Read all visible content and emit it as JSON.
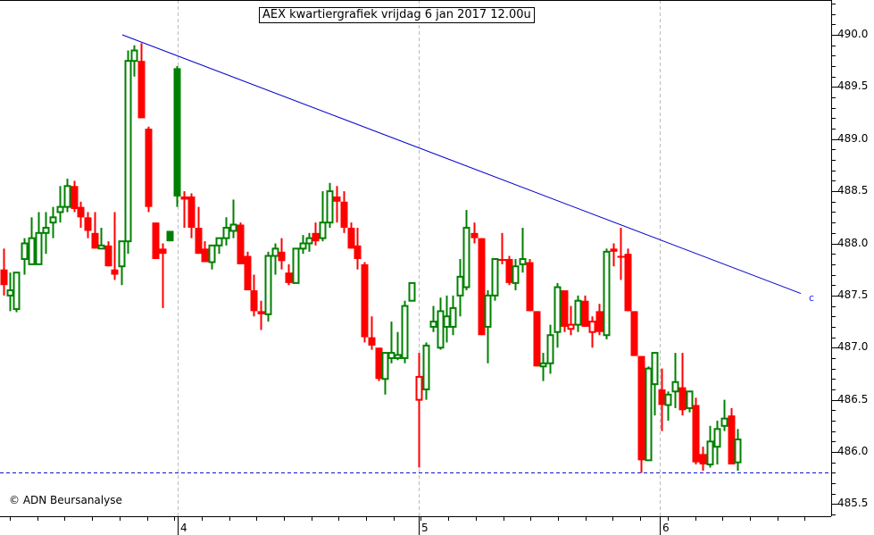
{
  "title": "AEX kwartiergrafiek vrijdag 6 jan 2017 12.00u",
  "copyright": "© ADN Beursanalyse",
  "trendline_label": "c",
  "colors": {
    "up": "#008000",
    "down": "#ff0000",
    "trendline": "#0000cc",
    "support": "#0000cc",
    "grid": "#bbbbbb",
    "axis": "#000000"
  },
  "chart_data": {
    "type": "candlestick",
    "title": "AEX kwartiergrafiek vrijdag 6 jan 2017 12.00u",
    "xlabel": "",
    "ylabel": "",
    "ylim": [
      485.38,
      490.33
    ],
    "y_ticks": [
      "490.0",
      "489.5",
      "489.0",
      "488.5",
      "488.0",
      "487.5",
      "487.0",
      "486.5",
      "486.0",
      "485.5"
    ],
    "x_ticks": [
      {
        "label": "4",
        "x": 199
      },
      {
        "label": "5",
        "x": 469
      },
      {
        "label": "6",
        "x": 739
      }
    ],
    "grid": "vertical dashed at day boundaries",
    "annotations": [
      {
        "type": "trendline",
        "label": "c",
        "from": {
          "x": 137,
          "price": 490.0
        },
        "to": {
          "x": 897,
          "price": 487.52
        }
      },
      {
        "type": "support_line",
        "style": "dashed",
        "price": 485.8
      }
    ],
    "candles": [
      {
        "x": 4,
        "o": 487.75,
        "h": 487.95,
        "l": 487.5,
        "c": 487.6,
        "dir": "down"
      },
      {
        "x": 11,
        "o": 487.5,
        "h": 487.72,
        "l": 487.35,
        "c": 487.55,
        "dir": "up"
      },
      {
        "x": 18,
        "o": 487.37,
        "h": 487.72,
        "l": 487.34,
        "c": 487.72,
        "dir": "up"
      },
      {
        "x": 27,
        "o": 487.85,
        "h": 488.05,
        "l": 487.7,
        "c": 488.0,
        "dir": "up"
      },
      {
        "x": 35,
        "o": 488.05,
        "h": 488.25,
        "l": 487.85,
        "c": 487.8,
        "dir": "up"
      },
      {
        "x": 43,
        "o": 487.8,
        "h": 488.3,
        "l": 487.8,
        "c": 488.1,
        "dir": "up"
      },
      {
        "x": 51,
        "o": 488.1,
        "h": 488.3,
        "l": 487.9,
        "c": 488.15,
        "dir": "up"
      },
      {
        "x": 59,
        "o": 488.2,
        "h": 488.35,
        "l": 488.05,
        "c": 488.25,
        "dir": "up"
      },
      {
        "x": 67,
        "o": 488.3,
        "h": 488.55,
        "l": 488.2,
        "c": 488.35,
        "dir": "up"
      },
      {
        "x": 75,
        "o": 488.35,
        "h": 488.62,
        "l": 488.3,
        "c": 488.55,
        "dir": "up"
      },
      {
        "x": 83,
        "o": 488.55,
        "h": 488.6,
        "l": 488.3,
        "c": 488.33,
        "dir": "down"
      },
      {
        "x": 90,
        "o": 488.35,
        "h": 488.4,
        "l": 488.15,
        "c": 488.25,
        "dir": "down"
      },
      {
        "x": 98,
        "o": 488.25,
        "h": 488.3,
        "l": 488.05,
        "c": 488.12,
        "dir": "down"
      },
      {
        "x": 106,
        "o": 488.1,
        "h": 488.3,
        "l": 487.95,
        "c": 487.95,
        "dir": "down"
      },
      {
        "x": 113,
        "o": 487.95,
        "h": 488.15,
        "l": 487.95,
        "c": 487.98,
        "dir": "up"
      },
      {
        "x": 121,
        "o": 487.98,
        "h": 488.02,
        "l": 487.78,
        "c": 487.78,
        "dir": "down"
      },
      {
        "x": 128,
        "o": 487.75,
        "h": 488.3,
        "l": 487.65,
        "c": 487.7,
        "dir": "down"
      },
      {
        "x": 136,
        "o": 487.78,
        "h": 488.0,
        "l": 487.6,
        "c": 488.02,
        "dir": "up"
      },
      {
        "x": 143,
        "o": 488.02,
        "h": 489.85,
        "l": 487.9,
        "c": 489.75,
        "dir": "up"
      },
      {
        "x": 150,
        "o": 489.75,
        "h": 489.9,
        "l": 489.6,
        "c": 489.85,
        "dir": "up"
      },
      {
        "x": 158,
        "o": 489.75,
        "h": 489.92,
        "l": 489.2,
        "c": 489.2,
        "dir": "down"
      },
      {
        "x": 166,
        "o": 489.1,
        "h": 489.12,
        "l": 488.3,
        "c": 488.35,
        "dir": "down"
      },
      {
        "x": 174,
        "o": 488.2,
        "h": 488.2,
        "l": 487.85,
        "c": 487.85,
        "dir": "down"
      },
      {
        "x": 182,
        "o": 487.95,
        "h": 488.0,
        "l": 487.38,
        "c": 487.9,
        "dir": "down"
      },
      {
        "x": 190,
        "o": 488.02,
        "h": 488.12,
        "l": 488.02,
        "c": 488.12,
        "dir": "up_filled"
      },
      {
        "x": 198,
        "o": 488.45,
        "h": 489.7,
        "l": 488.35,
        "c": 489.68,
        "dir": "up_filled"
      },
      {
        "x": 206,
        "o": 488.45,
        "h": 488.5,
        "l": 488.15,
        "c": 488.42,
        "dir": "down"
      },
      {
        "x": 214,
        "o": 488.45,
        "h": 488.48,
        "l": 488.05,
        "c": 488.15,
        "dir": "down"
      },
      {
        "x": 222,
        "o": 488.15,
        "h": 488.35,
        "l": 487.9,
        "c": 487.9,
        "dir": "down"
      },
      {
        "x": 229,
        "o": 487.95,
        "h": 488.02,
        "l": 487.85,
        "c": 487.82,
        "dir": "down"
      },
      {
        "x": 237,
        "o": 487.82,
        "h": 487.98,
        "l": 487.75,
        "c": 487.98,
        "dir": "up"
      },
      {
        "x": 245,
        "o": 487.98,
        "h": 488.05,
        "l": 487.9,
        "c": 488.05,
        "dir": "up"
      },
      {
        "x": 253,
        "o": 488.05,
        "h": 488.25,
        "l": 487.98,
        "c": 488.15,
        "dir": "up"
      },
      {
        "x": 261,
        "o": 488.12,
        "h": 488.42,
        "l": 488.05,
        "c": 488.18,
        "dir": "up"
      },
      {
        "x": 269,
        "o": 488.18,
        "h": 488.2,
        "l": 487.85,
        "c": 487.8,
        "dir": "down"
      },
      {
        "x": 277,
        "o": 487.88,
        "h": 487.92,
        "l": 487.55,
        "c": 487.55,
        "dir": "down"
      },
      {
        "x": 284,
        "o": 487.55,
        "h": 487.7,
        "l": 487.3,
        "c": 487.35,
        "dir": "down"
      },
      {
        "x": 292,
        "o": 487.35,
        "h": 487.45,
        "l": 487.17,
        "c": 487.32,
        "dir": "down"
      },
      {
        "x": 300,
        "o": 487.32,
        "h": 487.92,
        "l": 487.25,
        "c": 487.88,
        "dir": "up"
      },
      {
        "x": 308,
        "o": 487.88,
        "h": 488.0,
        "l": 487.7,
        "c": 487.95,
        "dir": "up"
      },
      {
        "x": 315,
        "o": 487.92,
        "h": 488.05,
        "l": 487.75,
        "c": 487.83,
        "dir": "down"
      },
      {
        "x": 323,
        "o": 487.72,
        "h": 487.8,
        "l": 487.6,
        "c": 487.62,
        "dir": "down"
      },
      {
        "x": 331,
        "o": 487.62,
        "h": 487.95,
        "l": 487.62,
        "c": 487.95,
        "dir": "up"
      },
      {
        "x": 339,
        "o": 487.95,
        "h": 488.08,
        "l": 487.9,
        "c": 488.0,
        "dir": "up"
      },
      {
        "x": 346,
        "o": 488.0,
        "h": 488.1,
        "l": 487.92,
        "c": 488.05,
        "dir": "up"
      },
      {
        "x": 353,
        "o": 488.1,
        "h": 488.2,
        "l": 487.98,
        "c": 488.02,
        "dir": "down"
      },
      {
        "x": 361,
        "o": 488.05,
        "h": 488.5,
        "l": 488.02,
        "c": 488.2,
        "dir": "up"
      },
      {
        "x": 369,
        "o": 488.2,
        "h": 488.58,
        "l": 488.15,
        "c": 488.5,
        "dir": "up"
      },
      {
        "x": 377,
        "o": 488.45,
        "h": 488.55,
        "l": 488.2,
        "c": 488.4,
        "dir": "down"
      },
      {
        "x": 385,
        "o": 488.4,
        "h": 488.5,
        "l": 488.1,
        "c": 488.15,
        "dir": "down"
      },
      {
        "x": 393,
        "o": 488.15,
        "h": 488.2,
        "l": 487.95,
        "c": 487.95,
        "dir": "down"
      },
      {
        "x": 400,
        "o": 487.98,
        "h": 488.15,
        "l": 487.75,
        "c": 487.85,
        "dir": "down"
      },
      {
        "x": 408,
        "o": 487.8,
        "h": 487.82,
        "l": 487.05,
        "c": 487.1,
        "dir": "down"
      },
      {
        "x": 416,
        "o": 487.1,
        "h": 487.3,
        "l": 486.98,
        "c": 487.02,
        "dir": "down"
      },
      {
        "x": 424,
        "o": 487.0,
        "h": 487.0,
        "l": 486.68,
        "c": 486.7,
        "dir": "down"
      },
      {
        "x": 431,
        "o": 486.7,
        "h": 486.88,
        "l": 486.55,
        "c": 486.95,
        "dir": "up"
      },
      {
        "x": 438,
        "o": 486.9,
        "h": 487.25,
        "l": 486.85,
        "c": 486.95,
        "dir": "up"
      },
      {
        "x": 445,
        "o": 486.9,
        "h": 487.15,
        "l": 486.88,
        "c": 486.93,
        "dir": "up"
      },
      {
        "x": 453,
        "o": 486.9,
        "h": 487.45,
        "l": 486.85,
        "c": 487.4,
        "dir": "up"
      },
      {
        "x": 461,
        "o": 487.45,
        "h": 487.62,
        "l": 487.45,
        "c": 487.62,
        "dir": "up"
      },
      {
        "x": 469,
        "o": 486.72,
        "h": 486.95,
        "l": 485.85,
        "c": 486.5,
        "dir": "down_hollow"
      },
      {
        "x": 477,
        "o": 486.6,
        "h": 487.05,
        "l": 486.5,
        "c": 487.02,
        "dir": "up"
      },
      {
        "x": 485,
        "o": 487.2,
        "h": 487.4,
        "l": 487.15,
        "c": 487.25,
        "dir": "up"
      },
      {
        "x": 493,
        "o": 487.0,
        "h": 487.48,
        "l": 486.98,
        "c": 487.35,
        "dir": "up"
      },
      {
        "x": 500,
        "o": 487.3,
        "h": 487.5,
        "l": 487.05,
        "c": 487.2,
        "dir": "up"
      },
      {
        "x": 507,
        "o": 487.2,
        "h": 487.5,
        "l": 487.12,
        "c": 487.38,
        "dir": "up"
      },
      {
        "x": 515,
        "o": 487.5,
        "h": 487.85,
        "l": 487.3,
        "c": 487.68,
        "dir": "up"
      },
      {
        "x": 522,
        "o": 487.58,
        "h": 488.32,
        "l": 487.55,
        "c": 488.15,
        "dir": "up"
      },
      {
        "x": 531,
        "o": 488.1,
        "h": 488.2,
        "l": 488.0,
        "c": 488.05,
        "dir": "down"
      },
      {
        "x": 539,
        "o": 488.05,
        "h": 488.05,
        "l": 487.12,
        "c": 487.12,
        "dir": "down"
      },
      {
        "x": 546,
        "o": 487.2,
        "h": 487.55,
        "l": 486.85,
        "c": 487.5,
        "dir": "up"
      },
      {
        "x": 554,
        "o": 487.5,
        "h": 487.85,
        "l": 487.45,
        "c": 487.85,
        "dir": "up"
      },
      {
        "x": 562,
        "o": 487.85,
        "h": 488.1,
        "l": 487.8,
        "c": 487.85,
        "dir": "down"
      },
      {
        "x": 570,
        "o": 487.85,
        "h": 487.88,
        "l": 487.6,
        "c": 487.62,
        "dir": "down"
      },
      {
        "x": 577,
        "o": 487.62,
        "h": 487.85,
        "l": 487.55,
        "c": 487.78,
        "dir": "up"
      },
      {
        "x": 585,
        "o": 487.8,
        "h": 488.15,
        "l": 487.72,
        "c": 487.85,
        "dir": "up"
      },
      {
        "x": 593,
        "o": 487.82,
        "h": 487.85,
        "l": 487.35,
        "c": 487.35,
        "dir": "down"
      },
      {
        "x": 601,
        "o": 487.35,
        "h": 487.35,
        "l": 486.82,
        "c": 486.82,
        "dir": "down"
      },
      {
        "x": 608,
        "o": 486.82,
        "h": 486.95,
        "l": 486.68,
        "c": 486.85,
        "dir": "up"
      },
      {
        "x": 616,
        "o": 486.85,
        "h": 487.22,
        "l": 486.75,
        "c": 487.12,
        "dir": "up"
      },
      {
        "x": 624,
        "o": 487.15,
        "h": 487.62,
        "l": 487.0,
        "c": 487.58,
        "dir": "up"
      },
      {
        "x": 632,
        "o": 487.55,
        "h": 487.55,
        "l": 487.15,
        "c": 487.2,
        "dir": "down"
      },
      {
        "x": 639,
        "o": 487.18,
        "h": 487.4,
        "l": 487.12,
        "c": 487.22,
        "dir": "down_hollow"
      },
      {
        "x": 647,
        "o": 487.22,
        "h": 487.5,
        "l": 487.15,
        "c": 487.45,
        "dir": "up"
      },
      {
        "x": 655,
        "o": 487.45,
        "h": 487.5,
        "l": 487.2,
        "c": 487.2,
        "dir": "down"
      },
      {
        "x": 663,
        "o": 487.15,
        "h": 487.3,
        "l": 487.0,
        "c": 487.25,
        "dir": "down_hollow"
      },
      {
        "x": 671,
        "o": 487.35,
        "h": 487.42,
        "l": 487.12,
        "c": 487.15,
        "dir": "down"
      },
      {
        "x": 679,
        "o": 487.12,
        "h": 487.95,
        "l": 487.08,
        "c": 487.92,
        "dir": "up"
      },
      {
        "x": 687,
        "o": 487.95,
        "h": 488.0,
        "l": 487.78,
        "c": 487.92,
        "dir": "down"
      },
      {
        "x": 695,
        "o": 487.88,
        "h": 488.15,
        "l": 487.65,
        "c": 487.88,
        "dir": "down"
      },
      {
        "x": 703,
        "o": 487.9,
        "h": 487.95,
        "l": 487.35,
        "c": 487.35,
        "dir": "down"
      },
      {
        "x": 710,
        "o": 487.35,
        "h": 487.35,
        "l": 486.92,
        "c": 486.92,
        "dir": "down"
      },
      {
        "x": 718,
        "o": 486.92,
        "h": 486.92,
        "l": 485.8,
        "c": 485.92,
        "dir": "down"
      },
      {
        "x": 726,
        "o": 485.92,
        "h": 486.82,
        "l": 485.92,
        "c": 486.8,
        "dir": "up"
      },
      {
        "x": 733,
        "o": 486.65,
        "h": 486.95,
        "l": 486.35,
        "c": 486.95,
        "dir": "up"
      },
      {
        "x": 741,
        "o": 486.6,
        "h": 486.8,
        "l": 486.2,
        "c": 486.45,
        "dir": "down"
      },
      {
        "x": 748,
        "o": 486.55,
        "h": 486.58,
        "l": 486.3,
        "c": 486.45,
        "dir": "up"
      },
      {
        "x": 756,
        "o": 486.58,
        "h": 486.95,
        "l": 486.42,
        "c": 486.67,
        "dir": "up"
      },
      {
        "x": 764,
        "o": 486.62,
        "h": 486.95,
        "l": 486.35,
        "c": 486.4,
        "dir": "down"
      },
      {
        "x": 772,
        "o": 486.42,
        "h": 486.58,
        "l": 486.38,
        "c": 486.58,
        "dir": "up"
      },
      {
        "x": 779,
        "o": 486.45,
        "h": 486.52,
        "l": 485.88,
        "c": 485.9,
        "dir": "down"
      },
      {
        "x": 787,
        "o": 485.98,
        "h": 486.05,
        "l": 485.82,
        "c": 485.88,
        "dir": "down"
      },
      {
        "x": 795,
        "o": 485.88,
        "h": 486.25,
        "l": 485.85,
        "c": 486.1,
        "dir": "up"
      },
      {
        "x": 803,
        "o": 486.05,
        "h": 486.3,
        "l": 485.88,
        "c": 486.22,
        "dir": "up"
      },
      {
        "x": 811,
        "o": 486.25,
        "h": 486.5,
        "l": 486.2,
        "c": 486.32,
        "dir": "up"
      },
      {
        "x": 819,
        "o": 486.35,
        "h": 486.42,
        "l": 485.88,
        "c": 485.88,
        "dir": "down"
      },
      {
        "x": 826,
        "o": 485.9,
        "h": 486.22,
        "l": 485.82,
        "c": 486.12,
        "dir": "up"
      }
    ]
  }
}
